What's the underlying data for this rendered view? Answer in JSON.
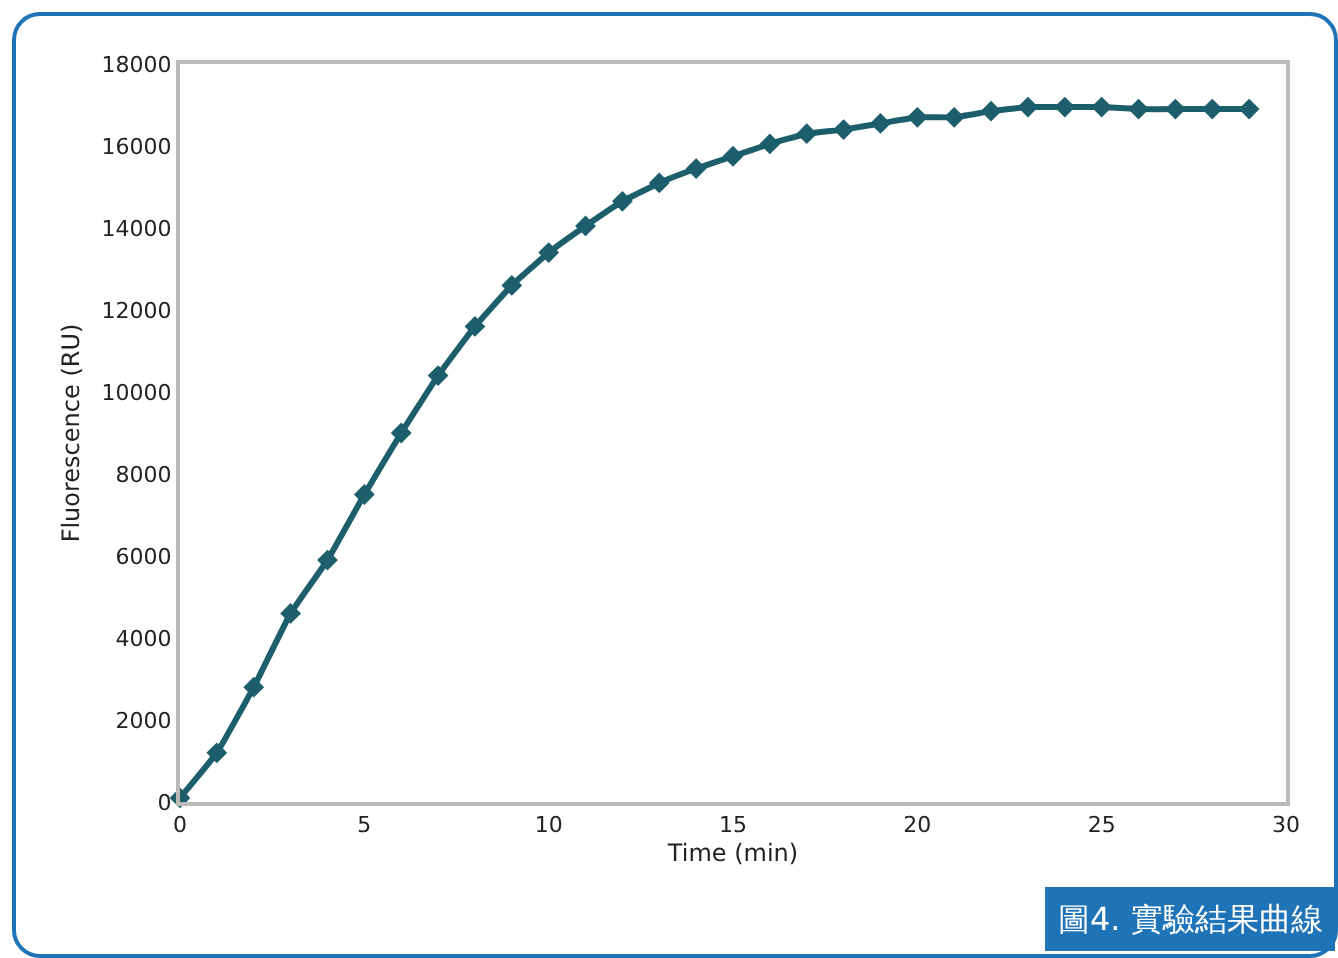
{
  "chart_data": {
    "type": "line",
    "xlabel": "Time (min)",
    "ylabel": "Fluorescence (RU)",
    "x": [
      0,
      1,
      2,
      3,
      4,
      5,
      6,
      7,
      8,
      9,
      10,
      11,
      12,
      13,
      14,
      15,
      16,
      17,
      18,
      19,
      20,
      21,
      22,
      23,
      24,
      25,
      26,
      27,
      28,
      29
    ],
    "series": [
      {
        "color": "#1d5e6d",
        "values": [
          100,
          1200,
          2800,
          4600,
          5900,
          7500,
          9000,
          10400,
          11600,
          12600,
          13400,
          14050,
          14650,
          15100,
          15450,
          15750,
          16050,
          16300,
          16400,
          16550,
          16700,
          16700,
          16850,
          16950,
          16950,
          16950,
          16900,
          16900,
          16900,
          16900
        ]
      }
    ],
    "xlim": [
      0,
      30
    ],
    "xticks": [
      0,
      5,
      10,
      15,
      20,
      25,
      30
    ],
    "ylim": [
      0,
      18000
    ],
    "yticks": [
      0,
      2000,
      4000,
      6000,
      8000,
      10000,
      12000,
      14000,
      16000,
      18000
    ],
    "grid": false,
    "marker": "diamond",
    "line_style": "solid",
    "annotations": [
      "圖4. 實驗結果曲線"
    ]
  }
}
